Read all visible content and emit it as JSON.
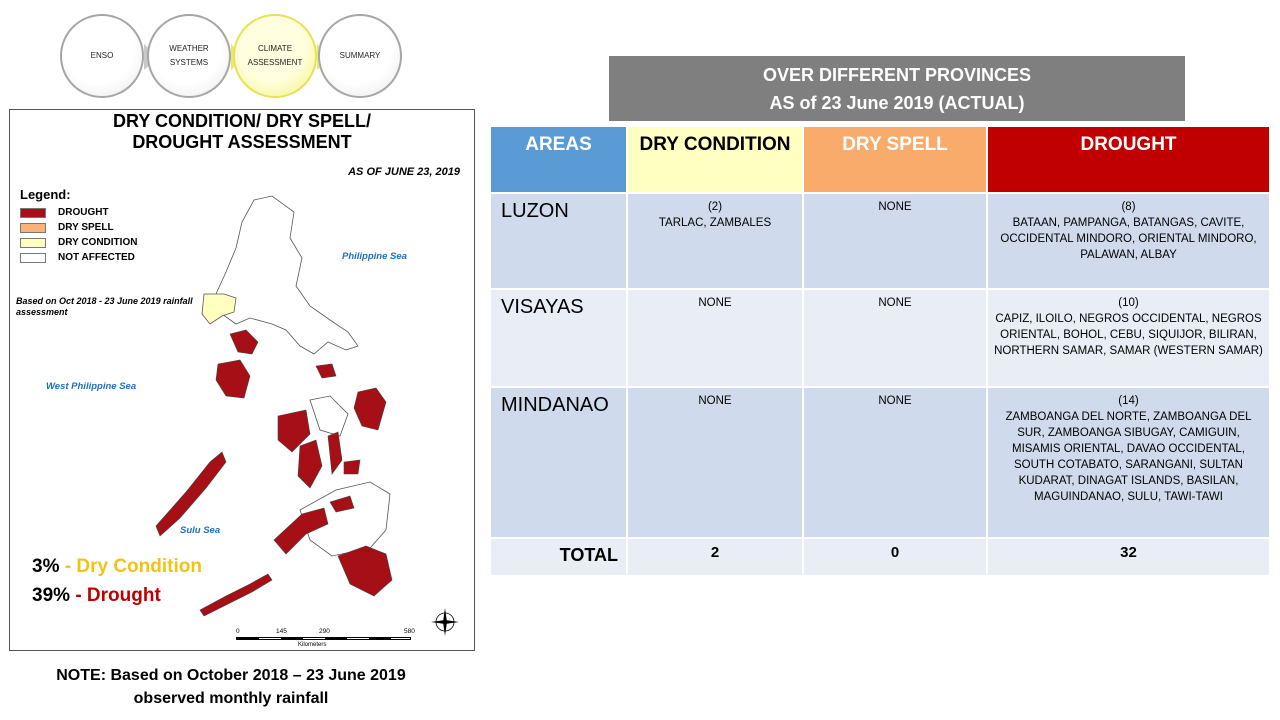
{
  "nav": {
    "steps": [
      {
        "label": "ENSO",
        "active": false
      },
      {
        "label": "WEATHER SYSTEMS",
        "active": false
      },
      {
        "label": "CLIMATE ASSESSMENT",
        "active": true
      },
      {
        "label": "SUMMARY",
        "active": false
      }
    ]
  },
  "map": {
    "title_line1": "DRY CONDITION/ DRY SPELL/",
    "title_line2": "DROUGHT ASSESSMENT",
    "as_of": "AS OF JUNE 23, 2019",
    "legend": {
      "title": "Legend:",
      "items": [
        {
          "label": "DROUGHT",
          "color": "#a50f15"
        },
        {
          "label": "DRY SPELL",
          "color": "#fbb27a"
        },
        {
          "label": "DRY CONDITION",
          "color": "#ffffbf"
        },
        {
          "label": "NOT AFFECTED",
          "color": "#ffffff"
        }
      ]
    },
    "basis": "Based on Oct 2018 - 23 June 2019 rainfall assessment",
    "seas": {
      "philippine": "Philippine Sea",
      "west": "West Philippine Sea",
      "sulu": "Sulu Sea"
    },
    "pct_dry_value": "3%",
    "pct_dry_label": "- Dry Condition",
    "pct_drought_value": "39%",
    "pct_drought_label": "- Drought",
    "scale": {
      "ticks": [
        "0",
        "145",
        "290",
        "580"
      ],
      "unit": "Kilometers"
    }
  },
  "note": {
    "line1": "NOTE: Based on October 2018 – 23 June 2019",
    "line2": "observed monthly rainfall"
  },
  "table": {
    "header_line1": "OVER DIFFERENT PROVINCES",
    "header_line2": "AS of 23 June 2019 (ACTUAL)",
    "columns": {
      "areas": "AREAS",
      "dry_condition": "DRY CONDITION",
      "dry_spell": "DRY SPELL",
      "drought": "DROUGHT"
    },
    "rows": [
      {
        "area": "LUZON",
        "dry_condition": "(2)\nTARLAC, ZAMBALES",
        "dry_spell": "NONE",
        "drought": "(8)\nBATAAN, PAMPANGA, BATANGAS, CAVITE, OCCIDENTAL MINDORO, ORIENTAL MINDORO, PALAWAN, ALBAY"
      },
      {
        "area": "VISAYAS",
        "dry_condition": "NONE",
        "dry_spell": "NONE",
        "drought": "(10)\nCAPIZ, ILOILO, NEGROS OCCIDENTAL, NEGROS ORIENTAL, BOHOL, CEBU, SIQUIJOR, BILIRAN, NORTHERN SAMAR, SAMAR (WESTERN SAMAR)"
      },
      {
        "area": "MINDANAO",
        "dry_condition": "NONE",
        "dry_spell": "NONE",
        "drought": "(14)\nZAMBOANGA DEL NORTE, ZAMBOANGA DEL SUR, ZAMBOANGA SIBUGAY, CAMIGUIN, MISAMIS ORIENTAL, DAVAO OCCIDENTAL, SOUTH COTABATO, SARANGANI, SULTAN KUDARAT, DINAGAT ISLANDS, BASILAN, MAGUINDANAO, SULU, TAWI-TAWI"
      }
    ],
    "total": {
      "label": "TOTAL",
      "dry_condition": "2",
      "dry_spell": "0",
      "drought": "32"
    }
  }
}
